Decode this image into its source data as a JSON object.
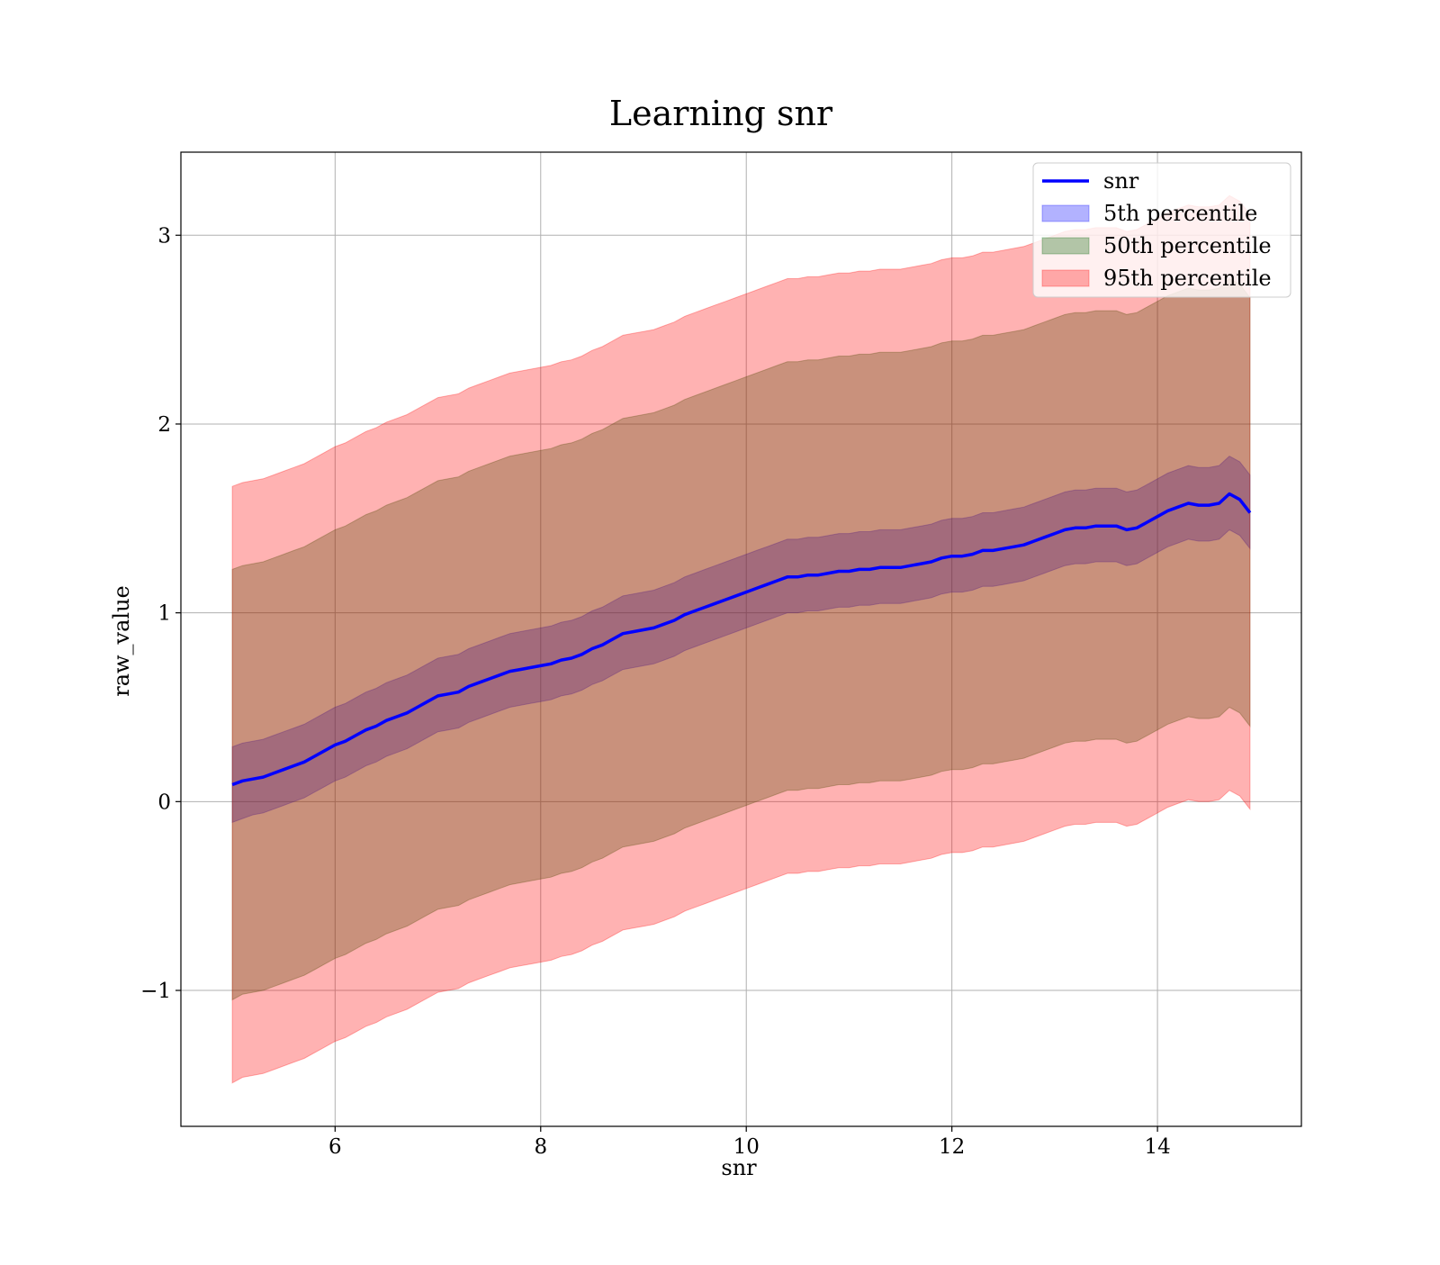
{
  "chart_data": {
    "type": "area",
    "title": "Learning snr",
    "xlabel": "snr",
    "ylabel": "raw_value",
    "xlim": [
      4.5,
      15.4
    ],
    "ylim": [
      -1.72,
      3.44
    ],
    "xticks": [
      6,
      8,
      10,
      12,
      14
    ],
    "yticks": [
      -1,
      0,
      1,
      2,
      3
    ],
    "ytick_labels": [
      "−1",
      "0",
      "1",
      "2",
      "3"
    ],
    "grid": true,
    "legend_position": "top-right",
    "legend": [
      {
        "label": "snr",
        "kind": "line",
        "color": "#0000ff"
      },
      {
        "label": "5th percentile",
        "kind": "band",
        "color": "#0000ff",
        "alpha": 0.3
      },
      {
        "label": "50th percentile",
        "kind": "band",
        "color": "#006400",
        "alpha": 0.3
      },
      {
        "label": "95th percentile",
        "kind": "band",
        "color": "#ff0000",
        "alpha": 0.3
      }
    ],
    "x": [
      5.0,
      5.1,
      5.2,
      5.3,
      5.4,
      5.5,
      5.6,
      5.7,
      5.8,
      5.9,
      6.0,
      6.1,
      6.2,
      6.3,
      6.4,
      6.5,
      6.6,
      6.7,
      6.8,
      6.9,
      7.0,
      7.1,
      7.2,
      7.3,
      7.4,
      7.5,
      7.6,
      7.7,
      7.8,
      7.9,
      8.0,
      8.1,
      8.2,
      8.3,
      8.4,
      8.5,
      8.6,
      8.7,
      8.8,
      8.9,
      9.0,
      9.1,
      9.2,
      9.3,
      9.4,
      9.5,
      9.6,
      9.7,
      9.8,
      9.9,
      10.0,
      10.1,
      10.2,
      10.3,
      10.4,
      10.5,
      10.6,
      10.7,
      10.8,
      10.9,
      11.0,
      11.1,
      11.2,
      11.3,
      11.4,
      11.5,
      11.6,
      11.7,
      11.8,
      11.9,
      12.0,
      12.1,
      12.2,
      12.3,
      12.4,
      12.5,
      12.6,
      12.7,
      12.8,
      12.9,
      13.0,
      13.1,
      13.2,
      13.3,
      13.4,
      13.5,
      13.6,
      13.7,
      13.8,
      13.9,
      14.0,
      14.1,
      14.2,
      14.3,
      14.4,
      14.5,
      14.6,
      14.7,
      14.8,
      14.9
    ],
    "series": [
      {
        "name": "snr",
        "values": [
          0.09,
          0.11,
          0.12,
          0.13,
          0.15,
          0.17,
          0.19,
          0.21,
          0.24,
          0.27,
          0.3,
          0.32,
          0.35,
          0.38,
          0.4,
          0.43,
          0.45,
          0.47,
          0.5,
          0.53,
          0.56,
          0.57,
          0.58,
          0.61,
          0.63,
          0.65,
          0.67,
          0.69,
          0.7,
          0.71,
          0.72,
          0.73,
          0.75,
          0.76,
          0.78,
          0.81,
          0.83,
          0.86,
          0.89,
          0.9,
          0.91,
          0.92,
          0.94,
          0.96,
          0.99,
          1.01,
          1.03,
          1.05,
          1.07,
          1.09,
          1.11,
          1.13,
          1.15,
          1.17,
          1.19,
          1.19,
          1.2,
          1.2,
          1.21,
          1.22,
          1.22,
          1.23,
          1.23,
          1.24,
          1.24,
          1.24,
          1.25,
          1.26,
          1.27,
          1.29,
          1.3,
          1.3,
          1.31,
          1.33,
          1.33,
          1.34,
          1.35,
          1.36,
          1.38,
          1.4,
          1.42,
          1.44,
          1.45,
          1.45,
          1.46,
          1.46,
          1.46,
          1.44,
          1.45,
          1.48,
          1.51,
          1.54,
          1.56,
          1.58,
          1.57,
          1.57,
          1.58,
          1.63,
          1.6,
          1.53
        ]
      },
      {
        "name": "5th percentile",
        "lower": [
          -0.11,
          -0.09,
          -0.07,
          -0.06,
          -0.04,
          -0.02,
          0.0,
          0.02,
          0.05,
          0.08,
          0.11,
          0.13,
          0.16,
          0.19,
          0.21,
          0.24,
          0.26,
          0.28,
          0.31,
          0.34,
          0.37,
          0.38,
          0.39,
          0.42,
          0.44,
          0.46,
          0.48,
          0.5,
          0.51,
          0.52,
          0.53,
          0.54,
          0.56,
          0.57,
          0.59,
          0.62,
          0.64,
          0.67,
          0.7,
          0.71,
          0.72,
          0.73,
          0.75,
          0.77,
          0.8,
          0.82,
          0.84,
          0.86,
          0.88,
          0.9,
          0.92,
          0.94,
          0.96,
          0.98,
          1.0,
          1.0,
          1.01,
          1.01,
          1.02,
          1.03,
          1.03,
          1.04,
          1.04,
          1.05,
          1.05,
          1.05,
          1.06,
          1.07,
          1.08,
          1.1,
          1.11,
          1.11,
          1.12,
          1.14,
          1.14,
          1.15,
          1.16,
          1.17,
          1.19,
          1.21,
          1.23,
          1.25,
          1.26,
          1.26,
          1.27,
          1.27,
          1.27,
          1.25,
          1.26,
          1.29,
          1.32,
          1.35,
          1.37,
          1.39,
          1.38,
          1.38,
          1.39,
          1.44,
          1.41,
          1.34
        ],
        "upper": [
          0.29,
          0.31,
          0.32,
          0.33,
          0.35,
          0.37,
          0.39,
          0.41,
          0.44,
          0.47,
          0.5,
          0.52,
          0.55,
          0.58,
          0.6,
          0.63,
          0.65,
          0.67,
          0.7,
          0.73,
          0.76,
          0.77,
          0.78,
          0.81,
          0.83,
          0.85,
          0.87,
          0.89,
          0.9,
          0.91,
          0.92,
          0.93,
          0.95,
          0.96,
          0.98,
          1.01,
          1.03,
          1.06,
          1.09,
          1.1,
          1.11,
          1.12,
          1.14,
          1.16,
          1.19,
          1.21,
          1.23,
          1.25,
          1.27,
          1.29,
          1.31,
          1.33,
          1.35,
          1.37,
          1.39,
          1.39,
          1.4,
          1.4,
          1.41,
          1.42,
          1.42,
          1.43,
          1.43,
          1.44,
          1.44,
          1.44,
          1.45,
          1.46,
          1.47,
          1.49,
          1.5,
          1.5,
          1.51,
          1.53,
          1.53,
          1.54,
          1.55,
          1.56,
          1.58,
          1.6,
          1.62,
          1.64,
          1.65,
          1.65,
          1.66,
          1.66,
          1.66,
          1.64,
          1.65,
          1.68,
          1.71,
          1.74,
          1.76,
          1.78,
          1.77,
          1.77,
          1.78,
          1.83,
          1.8,
          1.73
        ]
      },
      {
        "name": "50th percentile",
        "lower": [
          -1.05,
          -1.02,
          -1.01,
          -1.0,
          -0.98,
          -0.96,
          -0.94,
          -0.92,
          -0.89,
          -0.86,
          -0.83,
          -0.81,
          -0.78,
          -0.75,
          -0.73,
          -0.7,
          -0.68,
          -0.66,
          -0.63,
          -0.6,
          -0.57,
          -0.56,
          -0.55,
          -0.52,
          -0.5,
          -0.48,
          -0.46,
          -0.44,
          -0.43,
          -0.42,
          -0.41,
          -0.4,
          -0.38,
          -0.37,
          -0.35,
          -0.32,
          -0.3,
          -0.27,
          -0.24,
          -0.23,
          -0.22,
          -0.21,
          -0.19,
          -0.17,
          -0.14,
          -0.12,
          -0.1,
          -0.08,
          -0.06,
          -0.04,
          -0.02,
          0.0,
          0.02,
          0.04,
          0.06,
          0.06,
          0.07,
          0.07,
          0.08,
          0.09,
          0.09,
          0.1,
          0.1,
          0.11,
          0.11,
          0.11,
          0.12,
          0.13,
          0.14,
          0.16,
          0.17,
          0.17,
          0.18,
          0.2,
          0.2,
          0.21,
          0.22,
          0.23,
          0.25,
          0.27,
          0.29,
          0.31,
          0.32,
          0.32,
          0.33,
          0.33,
          0.33,
          0.31,
          0.32,
          0.35,
          0.38,
          0.41,
          0.43,
          0.45,
          0.44,
          0.44,
          0.45,
          0.5,
          0.47,
          0.4
        ],
        "upper": [
          1.23,
          1.25,
          1.26,
          1.27,
          1.29,
          1.31,
          1.33,
          1.35,
          1.38,
          1.41,
          1.44,
          1.46,
          1.49,
          1.52,
          1.54,
          1.57,
          1.59,
          1.61,
          1.64,
          1.67,
          1.7,
          1.71,
          1.72,
          1.75,
          1.77,
          1.79,
          1.81,
          1.83,
          1.84,
          1.85,
          1.86,
          1.87,
          1.89,
          1.9,
          1.92,
          1.95,
          1.97,
          2.0,
          2.03,
          2.04,
          2.05,
          2.06,
          2.08,
          2.1,
          2.13,
          2.15,
          2.17,
          2.19,
          2.21,
          2.23,
          2.25,
          2.27,
          2.29,
          2.31,
          2.33,
          2.33,
          2.34,
          2.34,
          2.35,
          2.36,
          2.36,
          2.37,
          2.37,
          2.38,
          2.38,
          2.38,
          2.39,
          2.4,
          2.41,
          2.43,
          2.44,
          2.44,
          2.45,
          2.47,
          2.47,
          2.48,
          2.49,
          2.5,
          2.52,
          2.54,
          2.56,
          2.58,
          2.59,
          2.59,
          2.6,
          2.6,
          2.6,
          2.58,
          2.59,
          2.62,
          2.65,
          2.68,
          2.7,
          2.72,
          2.71,
          2.71,
          2.72,
          2.77,
          2.74,
          2.67
        ]
      },
      {
        "name": "95th percentile",
        "lower": [
          -1.49,
          -1.46,
          -1.45,
          -1.44,
          -1.42,
          -1.4,
          -1.38,
          -1.36,
          -1.33,
          -1.3,
          -1.27,
          -1.25,
          -1.22,
          -1.19,
          -1.17,
          -1.14,
          -1.12,
          -1.1,
          -1.07,
          -1.04,
          -1.01,
          -1.0,
          -0.99,
          -0.96,
          -0.94,
          -0.92,
          -0.9,
          -0.88,
          -0.87,
          -0.86,
          -0.85,
          -0.84,
          -0.82,
          -0.81,
          -0.79,
          -0.76,
          -0.74,
          -0.71,
          -0.68,
          -0.67,
          -0.66,
          -0.65,
          -0.63,
          -0.61,
          -0.58,
          -0.56,
          -0.54,
          -0.52,
          -0.5,
          -0.48,
          -0.46,
          -0.44,
          -0.42,
          -0.4,
          -0.38,
          -0.38,
          -0.37,
          -0.37,
          -0.36,
          -0.35,
          -0.35,
          -0.34,
          -0.34,
          -0.33,
          -0.33,
          -0.33,
          -0.32,
          -0.31,
          -0.3,
          -0.28,
          -0.27,
          -0.27,
          -0.26,
          -0.24,
          -0.24,
          -0.23,
          -0.22,
          -0.21,
          -0.19,
          -0.17,
          -0.15,
          -0.13,
          -0.12,
          -0.12,
          -0.11,
          -0.11,
          -0.11,
          -0.13,
          -0.12,
          -0.09,
          -0.06,
          -0.03,
          -0.01,
          0.01,
          0.0,
          0.0,
          0.01,
          0.06,
          0.03,
          -0.04
        ],
        "upper": [
          1.67,
          1.69,
          1.7,
          1.71,
          1.73,
          1.75,
          1.77,
          1.79,
          1.82,
          1.85,
          1.88,
          1.9,
          1.93,
          1.96,
          1.98,
          2.01,
          2.03,
          2.05,
          2.08,
          2.11,
          2.14,
          2.15,
          2.16,
          2.19,
          2.21,
          2.23,
          2.25,
          2.27,
          2.28,
          2.29,
          2.3,
          2.31,
          2.33,
          2.34,
          2.36,
          2.39,
          2.41,
          2.44,
          2.47,
          2.48,
          2.49,
          2.5,
          2.52,
          2.54,
          2.57,
          2.59,
          2.61,
          2.63,
          2.65,
          2.67,
          2.69,
          2.71,
          2.73,
          2.75,
          2.77,
          2.77,
          2.78,
          2.78,
          2.79,
          2.8,
          2.8,
          2.81,
          2.81,
          2.82,
          2.82,
          2.82,
          2.83,
          2.84,
          2.85,
          2.87,
          2.88,
          2.88,
          2.89,
          2.91,
          2.91,
          2.92,
          2.93,
          2.94,
          2.96,
          2.98,
          3.0,
          3.02,
          3.03,
          3.03,
          3.04,
          3.04,
          3.04,
          3.02,
          3.03,
          3.06,
          3.09,
          3.12,
          3.14,
          3.16,
          3.15,
          3.15,
          3.16,
          3.21,
          3.18,
          3.11
        ]
      }
    ]
  }
}
